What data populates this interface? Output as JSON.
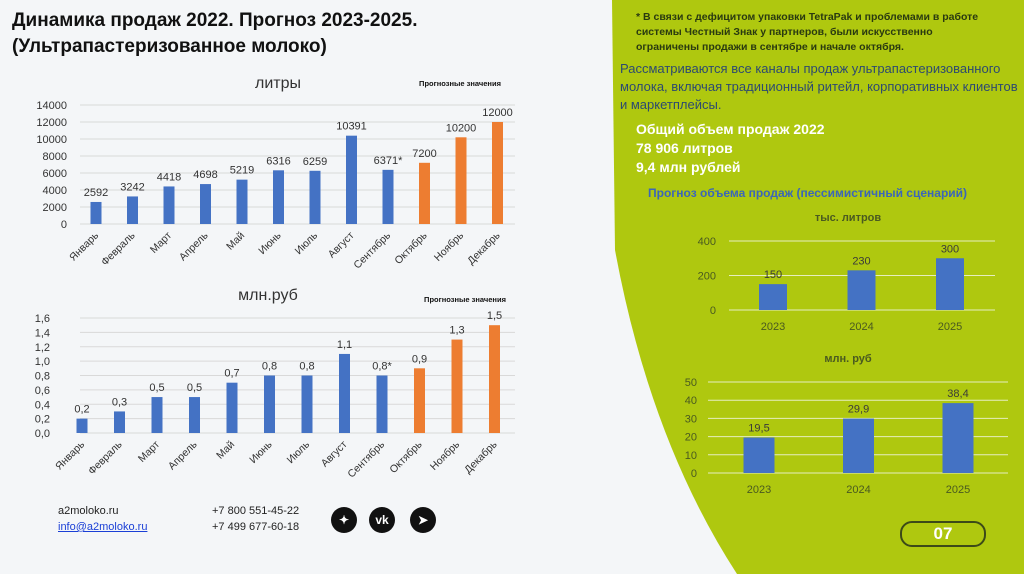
{
  "title_line1": "Динамика продаж 2022. Прогноз 2023-2025.",
  "title_line2": "(Ультрапастеризованное молоко)",
  "footnote": "* В связи с дефицитом упаковки TetraPak и проблемами в работе системы Честный Знак у партнеров, были искусственно ограничены продажи в сентябре и начале октября.",
  "description": "Рассматриваются все каналы продаж ультрапастеризованного молока, включая традиционный ритейл, корпоративных клиентов и маркетплейсы.",
  "total": {
    "title": "Общий объем продаж 2022",
    "liters": "78 906 литров",
    "rubles": "9,4 млн рублей"
  },
  "forecast_title": "Прогноз объема продаж (пессимистичный сценарий)",
  "contacts": {
    "site": "a2moloko.ru",
    "email": "info@a2moloko.ru",
    "phone1": "+7 800 551-45-22",
    "phone2": "+7 499 677-60-18"
  },
  "social": [
    "dzen-icon",
    "vk-icon",
    "telegram-icon"
  ],
  "page_number": "07",
  "colors": {
    "actual": "#4472c4",
    "forecast": "#ed7d31",
    "green": "#afc80f"
  },
  "chart_data": [
    {
      "type": "bar",
      "title": "литры",
      "legend_note": "Прогнозные значения",
      "categories": [
        "Январь",
        "Февраль",
        "Март",
        "Апрель",
        "Май",
        "Июнь",
        "Июль",
        "Август",
        "Сентябрь",
        "Октябрь",
        "Ноябрь",
        "Декабрь"
      ],
      "values": [
        2592,
        3242,
        4418,
        4698,
        5219,
        6316,
        6259,
        10391,
        6371,
        7200,
        10200,
        12000
      ],
      "labels": [
        "2592",
        "3242",
        "4418",
        "4698",
        "5219",
        "6316",
        "6259",
        "10391",
        "6371*",
        "7200",
        "10200",
        "12000"
      ],
      "forecast_from": 9,
      "ylim": [
        0,
        14000
      ],
      "yticks": [
        "0",
        "2000",
        "4000",
        "6000",
        "8000",
        "10000",
        "12000",
        "14000"
      ]
    },
    {
      "type": "bar",
      "title": "млн.руб",
      "legend_note": "Прогнозные значения",
      "categories": [
        "Январь",
        "Февраль",
        "Март",
        "Апрель",
        "Май",
        "Июнь",
        "Июль",
        "Август",
        "Сентябрь",
        "Октябрь",
        "Ноябрь",
        "Декабрь"
      ],
      "values": [
        0.2,
        0.3,
        0.5,
        0.5,
        0.7,
        0.8,
        0.8,
        1.1,
        0.8,
        0.9,
        1.3,
        1.5
      ],
      "labels": [
        "0,2",
        "0,3",
        "0,5",
        "0,5",
        "0,7",
        "0,8",
        "0,8",
        "1,1",
        "0,8*",
        "0,9",
        "1,3",
        "1,5"
      ],
      "forecast_from": 9,
      "ylim": [
        0,
        1.6
      ],
      "yticks": [
        "0,0",
        "0,2",
        "0,4",
        "0,6",
        "0,8",
        "1,0",
        "1,2",
        "1,4",
        "1,6"
      ]
    },
    {
      "type": "bar",
      "title": "тыс. литров",
      "categories": [
        "2023",
        "2024",
        "2025"
      ],
      "values": [
        150,
        230,
        300
      ],
      "labels": [
        "150",
        "230",
        "300"
      ],
      "ylim": [
        0,
        400
      ],
      "yticks": [
        "0",
        "200",
        "400"
      ]
    },
    {
      "type": "bar",
      "title": "млн. руб",
      "categories": [
        "2023",
        "2024",
        "2025"
      ],
      "values": [
        19.5,
        29.9,
        38.4
      ],
      "labels": [
        "19,5",
        "29,9",
        "38,4"
      ],
      "ylim": [
        0,
        50
      ],
      "yticks": [
        "0",
        "10",
        "20",
        "30",
        "40",
        "50"
      ]
    }
  ]
}
